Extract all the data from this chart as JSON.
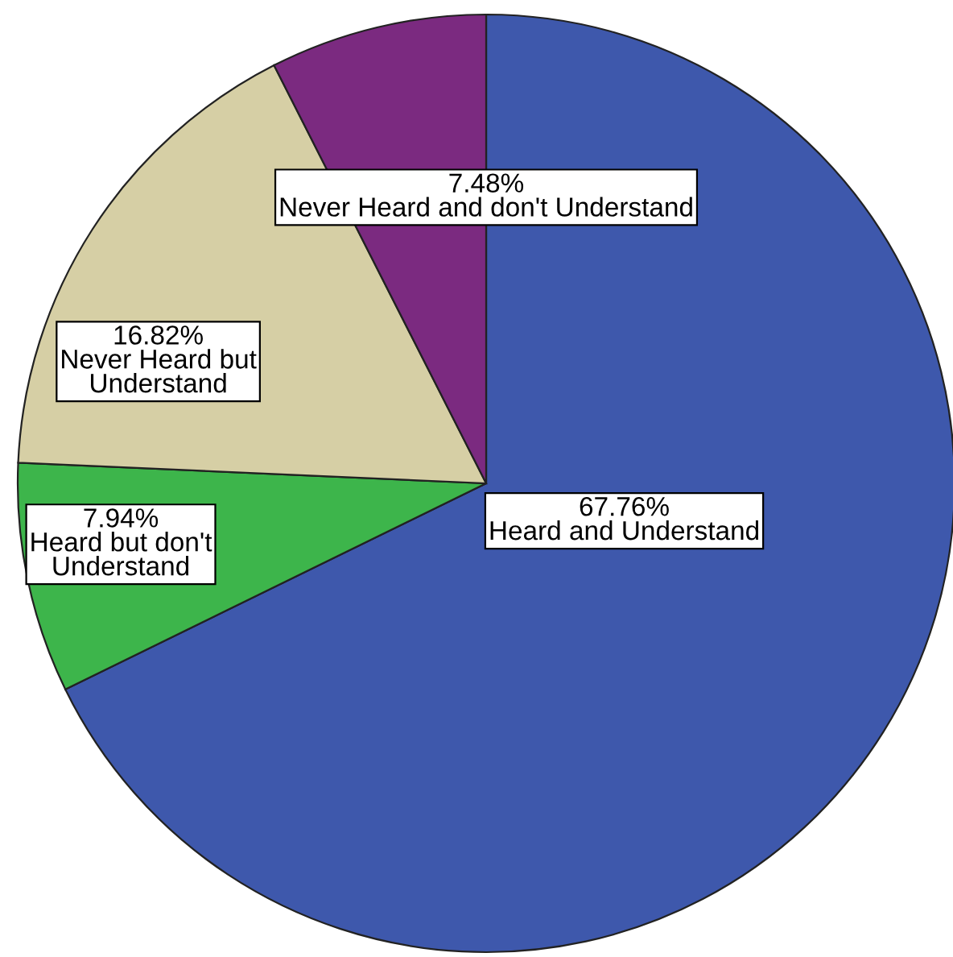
{
  "chart_data": {
    "type": "pie",
    "categories": [
      "Heard and Understand",
      "Heard but don't\nUnderstand",
      "Never Heard but\nUnderstand",
      "Never Heard and don't Understand"
    ],
    "values": [
      67.76,
      7.94,
      16.82,
      7.48
    ],
    "value_labels": [
      "67.76%",
      "7.94%",
      "16.82%",
      "7.48%"
    ],
    "colors": [
      "#3e58ac",
      "#3db54b",
      "#d6cfa5",
      "#7b2a80"
    ]
  }
}
